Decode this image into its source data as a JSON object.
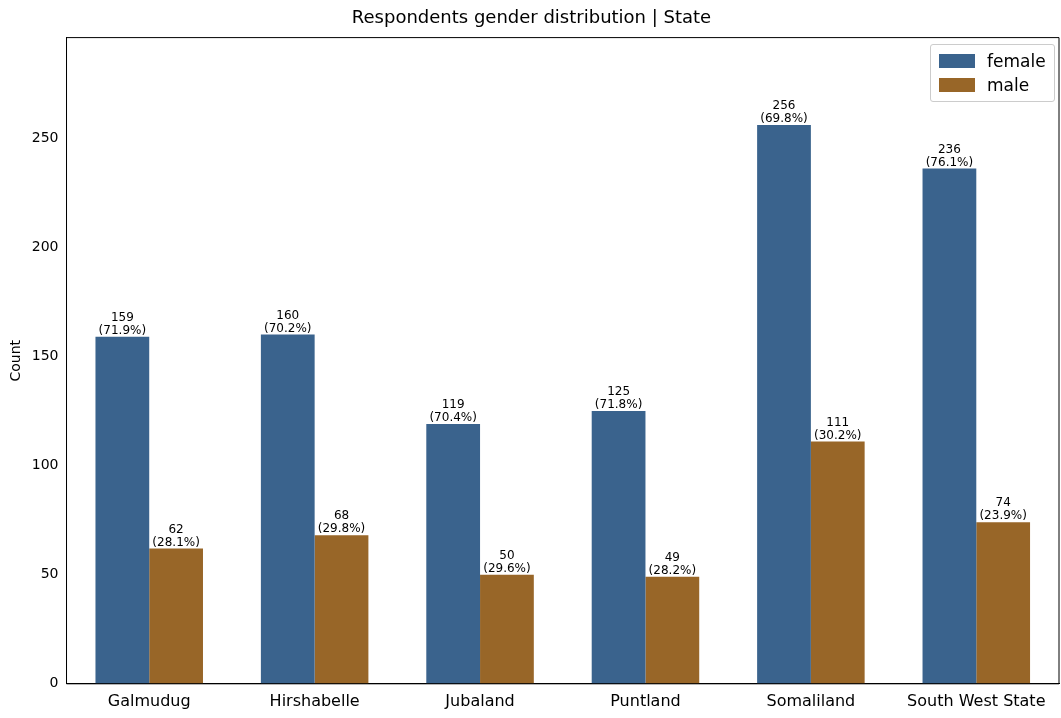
{
  "chart_data": {
    "type": "bar",
    "title": "Respondents gender distribution | State",
    "ylabel": "Count",
    "categories": [
      "Galmudug",
      "Hirshabelle",
      "Jubaland",
      "Puntland",
      "Somaliland",
      "South West State"
    ],
    "series": [
      {
        "name": "female",
        "color": "#3a638d",
        "values": [
          159,
          160,
          119,
          125,
          256,
          236
        ],
        "value_labels": [
          "159\n(71.9%)",
          "160\n(70.2%)",
          "119\n(70.4%)",
          "125\n(71.8%)",
          "256\n(69.8%)",
          "236\n(76.1%)"
        ]
      },
      {
        "name": "male",
        "color": "#986628",
        "values": [
          62,
          68,
          50,
          49,
          111,
          74
        ],
        "value_labels": [
          "62\n(28.1%)",
          "68\n(29.8%)",
          "50\n(29.6%)",
          "49\n(28.2%)",
          "111\n(30.2%)",
          "74\n(23.9%)"
        ]
      }
    ],
    "ylim": [
      0,
      296
    ],
    "yticks": [
      0,
      50,
      100,
      150,
      200,
      250
    ],
    "grid": false,
    "legend": "top right"
  }
}
